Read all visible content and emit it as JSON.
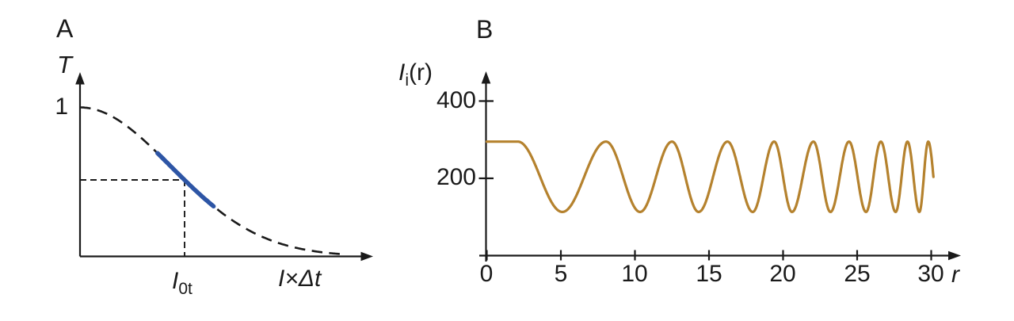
{
  "colors": {
    "ink": "#1a1a1a",
    "highlight_blue": "#2d55a5",
    "curve_orange": "#b5822e",
    "background": "#ffffff"
  },
  "panels": {
    "a": {
      "label": "A",
      "y_axis_label": "T",
      "y_tick_label": "1",
      "x_axis_label": "I×Δt",
      "marker_base": "I",
      "marker_sub": "0t"
    },
    "b": {
      "label": "B",
      "y_label_base": "I",
      "y_label_sub": "i",
      "y_label_rest": "(r)",
      "x_axis_label": "r"
    }
  },
  "chart_data": [
    {
      "type": "line",
      "panel": "A",
      "title": "",
      "xlabel": "I×Δt",
      "ylabel": "T",
      "y_ticks": [
        1
      ],
      "x_marker_label": "I0t",
      "x_marker_frac": 0.358,
      "guide_level": 0.513,
      "curve": "dashed gaussian-like transmission decay from T=1 toward 0",
      "gaussian_a": 5.22,
      "curve_end_frac": 0.9,
      "highlight_frac": [
        0.265,
        0.458
      ],
      "line_style": "dashed",
      "line_color": "#1a1a1a",
      "highlight_color": "#2d55a5",
      "xlim_frac": [
        0,
        1
      ],
      "ylim": [
        0,
        1.15
      ],
      "grid": false
    },
    {
      "type": "line",
      "panel": "B",
      "title": "",
      "xlabel": "r",
      "ylabel": "Ii(r)",
      "x_ticks": [
        0,
        5,
        10,
        15,
        20,
        25,
        30
      ],
      "y_ticks": [
        400,
        200
      ],
      "xlim": [
        0,
        32
      ],
      "ylim": [
        0,
        480
      ],
      "grid": false,
      "curve": "chirped oscillation: flat near 295, then oscillates between ~113 and ~295 with period shrinking from ~6 to ~1.2 as r grows",
      "baseline": 204,
      "amplitude": 91,
      "flat_until": 2.1,
      "end_r": 30.15,
      "end_phase_pi": 18.5,
      "phase_points_pi": [
        [
          2.1,
          0
        ],
        [
          5.1,
          1
        ],
        [
          8.05,
          2
        ],
        [
          10.35,
          3
        ],
        [
          12.5,
          4
        ],
        [
          14.3,
          5
        ],
        [
          16.25,
          6
        ],
        [
          17.95,
          7
        ],
        [
          19.4,
          8
        ],
        [
          20.6,
          9
        ],
        [
          22.05,
          10
        ],
        [
          23.2,
          11
        ],
        [
          24.45,
          12
        ],
        [
          25.6,
          13
        ],
        [
          26.6,
          14
        ],
        [
          27.6,
          15
        ],
        [
          28.4,
          16
        ],
        [
          29.2,
          17
        ],
        [
          29.8,
          18
        ],
        [
          30.15,
          18.5
        ]
      ],
      "line_color": "#b5822e"
    }
  ]
}
